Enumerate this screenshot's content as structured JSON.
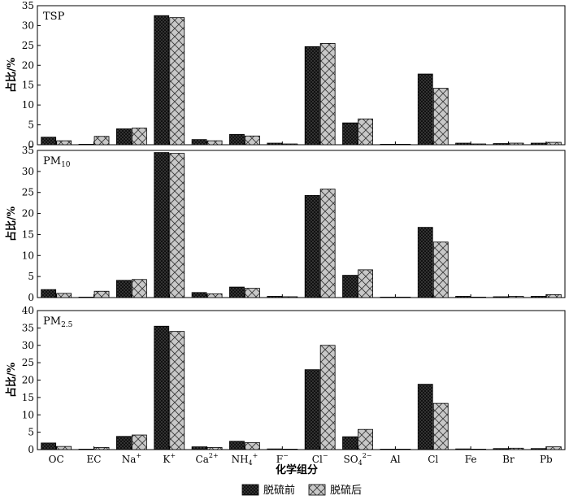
{
  "chart_data": {
    "type": "bar",
    "x_label": "化学组分",
    "y_label": "占比/%",
    "categories": [
      "OC",
      "EC",
      "Na+",
      "K+",
      "Ca2+",
      "NH4+",
      "F−",
      "Cl−",
      "SO4 2−",
      "Al",
      "Cl",
      "Fe",
      "Br",
      "Pb"
    ],
    "category_labels": [
      {
        "base": "OC",
        "sup": ""
      },
      {
        "base": "EC",
        "sup": ""
      },
      {
        "base": "Na",
        "sup": "+"
      },
      {
        "base": "K",
        "sup": "+"
      },
      {
        "base": "Ca",
        "sup": "2+"
      },
      {
        "base": "NH",
        "sub": "4",
        "sup": "+"
      },
      {
        "base": "F",
        "sup": "−"
      },
      {
        "base": "Cl",
        "sup": "−"
      },
      {
        "base": "SO",
        "sub": "4",
        "sup": "2−"
      },
      {
        "base": "Al",
        "sup": ""
      },
      {
        "base": "Cl",
        "sup": ""
      },
      {
        "base": "Fe",
        "sup": ""
      },
      {
        "base": "Br",
        "sup": ""
      },
      {
        "base": "Pb",
        "sup": ""
      }
    ],
    "legend": [
      {
        "name": "脱硫前",
        "pattern": "dark-dots"
      },
      {
        "name": "脱硫后",
        "pattern": "grey-crosshatch"
      }
    ],
    "panels": [
      {
        "label_main": "TSP",
        "label_sub": "",
        "ylim": [
          0,
          35
        ],
        "yticks": [
          0,
          5,
          10,
          15,
          20,
          25,
          30,
          35
        ],
        "series": [
          {
            "name": "脱硫前",
            "values": [
              1.9,
              0.1,
              4.0,
              32.5,
              1.3,
              2.6,
              0.4,
              24.7,
              5.5,
              0.1,
              17.8,
              0.4,
              0.3,
              0.4
            ]
          },
          {
            "name": "脱硫后",
            "values": [
              1.0,
              2.1,
              4.2,
              32.0,
              1.0,
              2.2,
              0.2,
              25.5,
              6.5,
              0.0,
              14.2,
              0.2,
              0.4,
              0.6
            ]
          }
        ]
      },
      {
        "label_main": "PM",
        "label_sub": "10",
        "ylim": [
          0,
          35
        ],
        "yticks": [
          0,
          5,
          10,
          15,
          20,
          25,
          30,
          35
        ],
        "series": [
          {
            "name": "脱硫前",
            "values": [
              1.9,
              0.0,
              4.1,
              34.5,
              1.2,
              2.5,
              0.3,
              24.3,
              5.3,
              0.0,
              16.7,
              0.3,
              0.2,
              0.3
            ]
          },
          {
            "name": "脱硫后",
            "values": [
              1.0,
              1.5,
              4.3,
              34.3,
              0.9,
              2.2,
              0.2,
              25.8,
              6.6,
              0.0,
              13.2,
              0.1,
              0.3,
              0.7
            ]
          }
        ]
      },
      {
        "label_main": "PM",
        "label_sub": "2.5",
        "ylim": [
          0,
          40
        ],
        "yticks": [
          0,
          5,
          10,
          15,
          20,
          25,
          30,
          35,
          40
        ],
        "series": [
          {
            "name": "脱硫前",
            "values": [
              1.9,
              0.0,
              3.8,
              35.5,
              0.8,
              2.4,
              0.2,
              23.0,
              3.7,
              0.0,
              18.8,
              0.2,
              0.3,
              0.3
            ]
          },
          {
            "name": "脱硫后",
            "values": [
              0.9,
              0.6,
              4.2,
              34.0,
              0.6,
              2.0,
              0.1,
              30.0,
              5.8,
              0.0,
              13.3,
              0.1,
              0.4,
              0.8
            ]
          }
        ]
      }
    ]
  }
}
